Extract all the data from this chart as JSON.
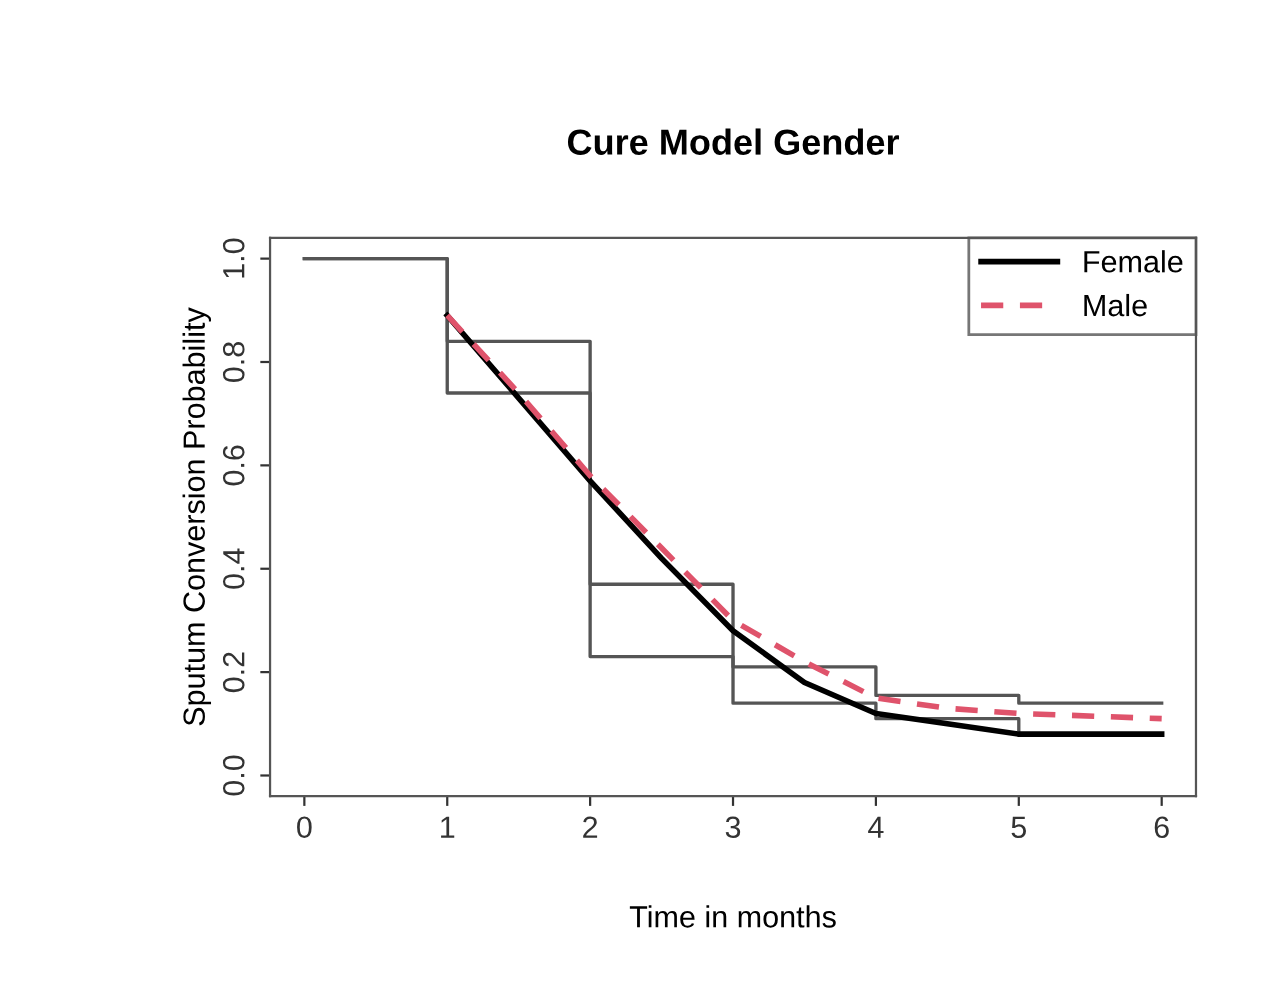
{
  "chart_data": {
    "type": "line",
    "title": "Cure Model Gender",
    "xlabel": "Time in months",
    "ylabel": "Sputum Conversion Probability",
    "x": [
      1,
      1.5,
      2,
      2.5,
      3,
      3.5,
      4,
      4.5,
      5,
      6
    ],
    "series": [
      {
        "type": "step",
        "color": "#555555",
        "x": [
          0,
          1,
          2,
          3,
          4,
          5,
          6
        ],
        "values": [
          1.0,
          0.84,
          0.37,
          0.21,
          0.155,
          0.14,
          0.14
        ]
      },
      {
        "type": "step",
        "color": "#555555",
        "x": [
          0,
          1,
          2,
          3,
          4,
          5,
          6
        ],
        "values": [
          1.0,
          0.74,
          0.23,
          0.14,
          0.11,
          0.08,
          0.08
        ]
      },
      {
        "name": "Female",
        "color": "#000000",
        "line_style": "solid",
        "values": [
          0.89,
          0.73,
          0.57,
          0.42,
          0.28,
          0.18,
          0.12,
          0.1,
          0.08,
          0.08
        ]
      },
      {
        "name": "Male",
        "color": "#df536b",
        "line_style": "dashed",
        "values": [
          0.89,
          0.74,
          0.58,
          0.44,
          0.3,
          0.22,
          0.15,
          0.13,
          0.12,
          0.11
        ]
      }
    ],
    "xlim": [
      -0.24,
      6.24
    ],
    "ylim": [
      -0.04,
      1.04
    ],
    "xticks": [
      0,
      1,
      2,
      3,
      4,
      5,
      6
    ],
    "yticks": [
      {
        "value": 0,
        "label": "0.0"
      },
      0.2,
      0.4,
      0.6,
      0.8,
      {
        "value": 1,
        "label": "1.0"
      }
    ],
    "grid": false,
    "legend": "top right"
  }
}
